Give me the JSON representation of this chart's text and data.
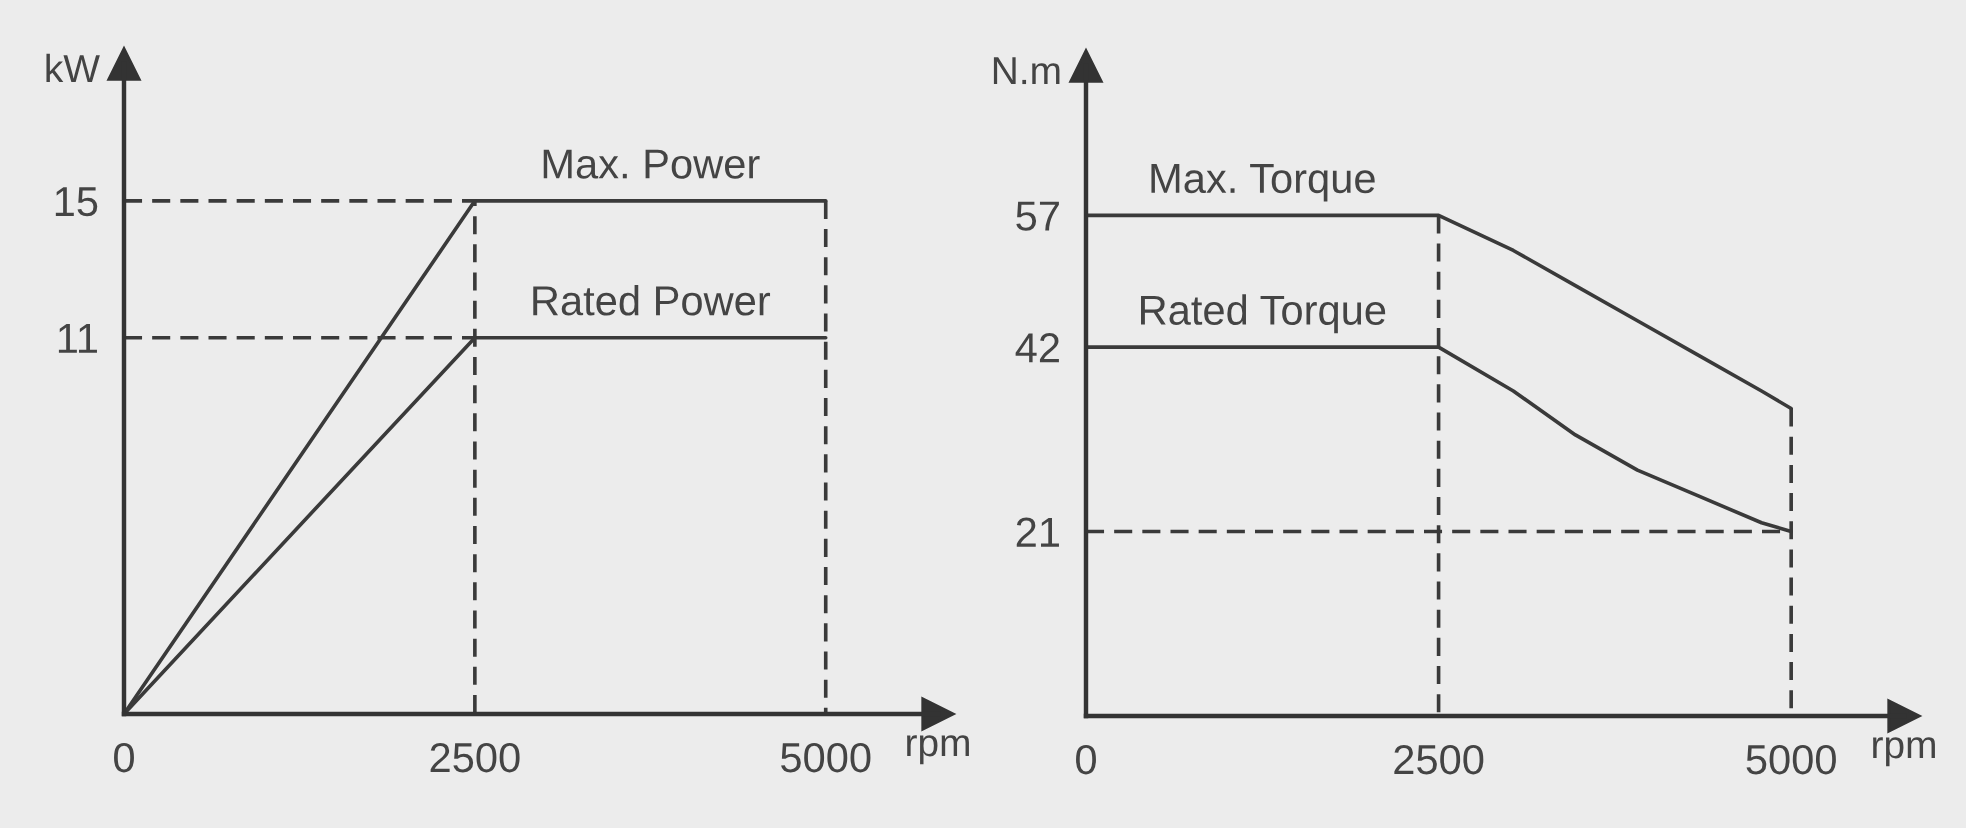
{
  "chart_data": [
    {
      "type": "line",
      "xlabel": "rpm",
      "ylabel": "kW",
      "xlim": [
        0,
        5800
      ],
      "ylim": [
        0,
        19
      ],
      "xticks": [
        0,
        2500,
        5000
      ],
      "yticks": [
        11,
        15
      ],
      "line_style": "solid",
      "series": [
        {
          "name": "Max. Power",
          "color": "#3a3a3a",
          "x": [
            0,
            2500,
            5000
          ],
          "values": [
            0,
            15,
            15
          ]
        },
        {
          "name": "Rated Power",
          "color": "#3a3a3a",
          "x": [
            0,
            2500,
            5000
          ],
          "values": [
            0,
            11,
            11
          ]
        },
        {
          "color": "#3a3a3a",
          "line_style": "dashed",
          "x": [
            0,
            2500,
            2500
          ],
          "values": [
            15,
            15,
            0
          ]
        },
        {
          "color": "#3a3a3a",
          "line_style": "dashed",
          "x": [
            0,
            2500
          ],
          "values": [
            11,
            11
          ]
        },
        {
          "color": "#3a3a3a",
          "line_style": "dashed",
          "x": [
            5000,
            5000
          ],
          "values": [
            15,
            0
          ]
        }
      ]
    },
    {
      "type": "line",
      "xlabel": "rpm",
      "ylabel": "N.m",
      "xlim": [
        0,
        5800
      ],
      "ylim": [
        0,
        74
      ],
      "xticks": [
        0,
        2500,
        5000
      ],
      "yticks": [
        21,
        42,
        57
      ],
      "line_style": "solid",
      "series": [
        {
          "name": "Max. Torque",
          "color": "#3a3a3a",
          "x": [
            0,
            2500,
            3030,
            3470,
            3910,
            4350,
            4790,
            5000
          ],
          "values": [
            57,
            57,
            53,
            49,
            45,
            41,
            37,
            35
          ]
        },
        {
          "name": "Rated Torque",
          "color": "#3a3a3a",
          "x": [
            0,
            2500,
            3030,
            3470,
            3910,
            4350,
            4790,
            5000
          ],
          "values": [
            42,
            42,
            37,
            32,
            28,
            25,
            22,
            21
          ]
        },
        {
          "color": "#3a3a3a",
          "line_style": "dashed",
          "x": [
            2500,
            2500
          ],
          "values": [
            57,
            0
          ]
        },
        {
          "color": "#3a3a3a",
          "line_style": "dashed",
          "x": [
            5000,
            5000
          ],
          "values": [
            35,
            0
          ]
        },
        {
          "color": "#3a3a3a",
          "line_style": "dashed",
          "x": [
            0,
            5000
          ],
          "values": [
            21,
            21
          ]
        }
      ]
    }
  ]
}
